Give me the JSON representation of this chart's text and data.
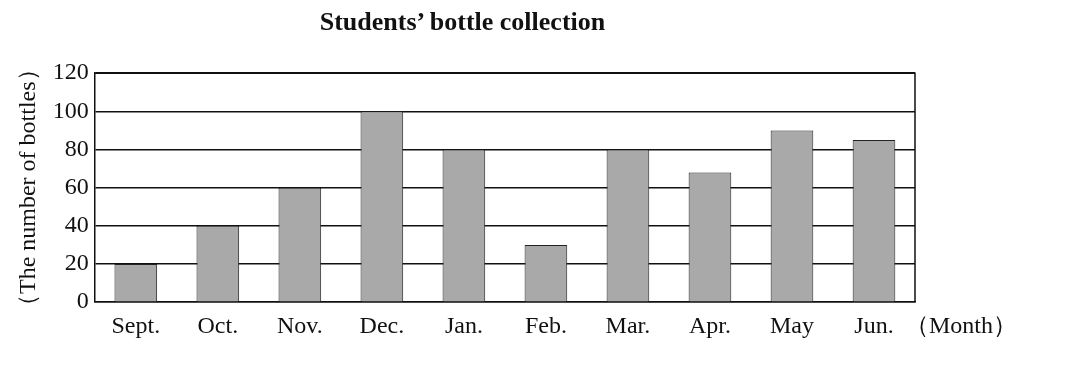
{
  "chart_data": {
    "type": "bar",
    "title": "Students’ bottle collection",
    "xlabel": "（Month）",
    "ylabel": "（The number of bottles）",
    "categories": [
      "Sept.",
      "Oct.",
      "Nov.",
      "Dec.",
      "Jan.",
      "Feb.",
      "Mar.",
      "Apr.",
      "May",
      "Jun."
    ],
    "values": [
      20,
      40,
      60,
      100,
      80,
      30,
      80,
      68,
      90,
      85
    ],
    "color": "#a9a9a9",
    "ylim": [
      0,
      120
    ],
    "yticks": [
      0,
      20,
      40,
      60,
      80,
      100,
      120
    ],
    "grid": "y",
    "legend": false
  }
}
